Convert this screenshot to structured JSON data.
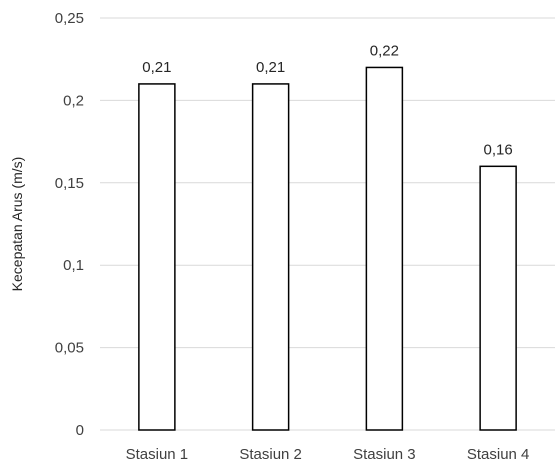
{
  "chart_data": {
    "type": "bar",
    "categories": [
      "Stasiun 1",
      "Stasiun 2",
      "Stasiun 3",
      "Stasiun 4"
    ],
    "values": [
      0.21,
      0.21,
      0.22,
      0.16
    ],
    "data_labels": [
      "0,21",
      "0,21",
      "0,22",
      "0,16"
    ],
    "ylabel": "Kecepatan Arus (m/s)",
    "xlabel": "",
    "ylim": [
      0,
      0.25
    ],
    "yticks": [
      0,
      0.05,
      0.1,
      0.15,
      0.2,
      0.25
    ],
    "ytick_labels": [
      "0",
      "0,05",
      "0,1",
      "0,15",
      "0,2",
      "0,25"
    ],
    "grid": true,
    "legend": "none",
    "bar_fill": "#ffffff",
    "bar_stroke": "#000000",
    "grid_color": "#d9d9d9"
  }
}
